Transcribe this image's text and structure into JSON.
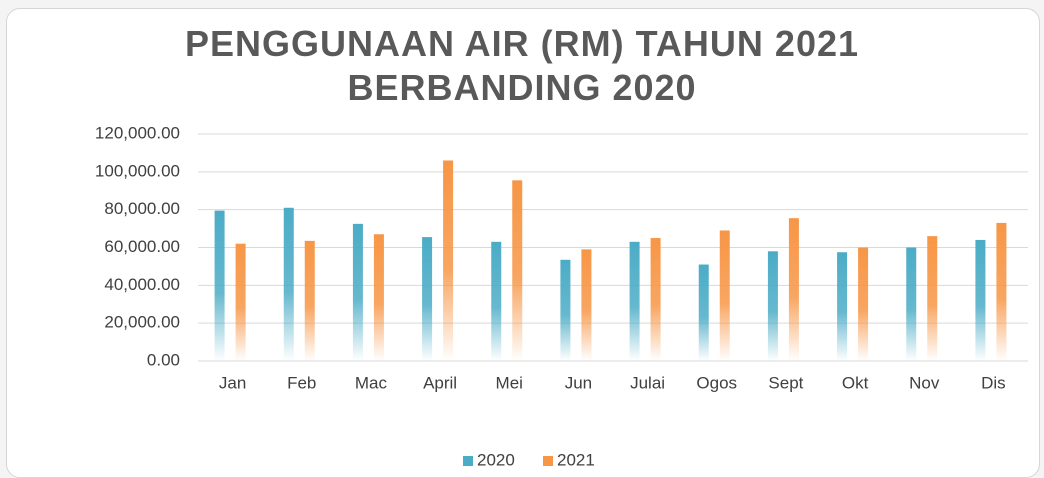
{
  "chart_data": {
    "type": "bar",
    "title": "PENGGUNAAN AIR (RM) TAHUN 2021 BERBANDING 2020",
    "categories": [
      "Jan",
      "Feb",
      "Mac",
      "April",
      "Mei",
      "Jun",
      "Julai",
      "Ogos",
      "Sept",
      "Okt",
      "Nov",
      "Dis"
    ],
    "series": [
      {
        "name": "2020",
        "color": "#4bacc6",
        "values": [
          79500,
          81000,
          72500,
          65500,
          63000,
          53500,
          63000,
          51000,
          58000,
          57500,
          60000,
          64000
        ]
      },
      {
        "name": "2021",
        "color": "#f79646",
        "values": [
          62000,
          63500,
          67000,
          106000,
          95500,
          59000,
          65000,
          69000,
          75500,
          60000,
          66000,
          73000
        ]
      }
    ],
    "ylim": [
      0,
      120000
    ],
    "yticks": [
      {
        "value": 0,
        "label": "0.00"
      },
      {
        "value": 20000,
        "label": "20,000.00"
      },
      {
        "value": 40000,
        "label": "40,000.00"
      },
      {
        "value": 60000,
        "label": "60,000.00"
      },
      {
        "value": 80000,
        "label": "80,000.00"
      },
      {
        "value": 100000,
        "label": "100,000.00"
      },
      {
        "value": 120000,
        "label": "120,000.00"
      }
    ],
    "grid": true,
    "legend": "bottom"
  }
}
